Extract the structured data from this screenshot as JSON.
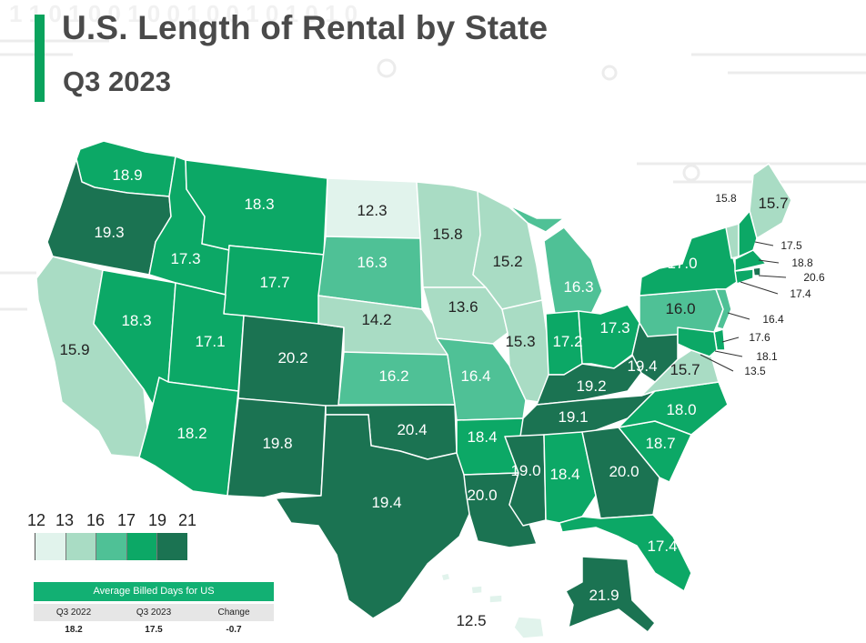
{
  "header": {
    "title": "U.S. Length of Rental by State",
    "subtitle": "Q3 2023",
    "accent_color": "#0aa35d"
  },
  "legend": {
    "breaks": [
      "12",
      "13",
      "16",
      "17",
      "19",
      "21"
    ],
    "colors": [
      "#e1f3ec",
      "#a9dcc4",
      "#4fc196",
      "#0ca866",
      "#1b7352"
    ]
  },
  "average_table": {
    "heading": "Average Billed Days for US",
    "columns": [
      "Q3 2022",
      "Q3 2023",
      "Change"
    ],
    "values": [
      "18.2",
      "17.5",
      "-0.7"
    ]
  },
  "states": {
    "WA": "18.9",
    "OR": "19.3",
    "CA": "15.9",
    "NV": "18.3",
    "ID": "17.3",
    "MT": "18.3",
    "WY": "17.7",
    "UT": "17.1",
    "AZ": "18.2",
    "CO": "20.2",
    "NM": "19.8",
    "ND": "12.3",
    "SD": "16.3",
    "NE": "14.2",
    "KS": "16.2",
    "OK": "20.4",
    "TX": "19.4",
    "MN": "15.8",
    "IA": "13.6",
    "MO": "16.4",
    "AR": "18.4",
    "LA": "20.0",
    "WI": "15.2",
    "IL": "15.3",
    "MI": "16.3",
    "IN": "17.2",
    "OH": "17.3",
    "KY": "19.2",
    "TN": "19.1",
    "MS": "19.0",
    "AL": "18.4",
    "GA": "20.0",
    "FL": "17.4",
    "SC": "18.7",
    "NC": "18.0",
    "VA": "15.7",
    "WV": "19.4",
    "PA": "16.0",
    "NY": "17.0",
    "ME": "15.7",
    "VT": "15.8",
    "NH": "17.5",
    "MA": "18.8",
    "RI": "20.6",
    "CT": "17.4",
    "NJ": "16.4",
    "DE": "17.6",
    "MD": "18.1",
    "DC": "13.5",
    "AK": "21.9",
    "HI": "12.5"
  }
}
